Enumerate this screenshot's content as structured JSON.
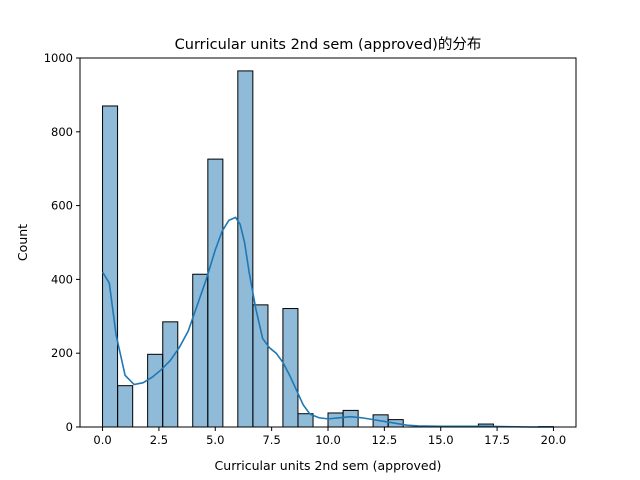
{
  "chart_data": {
    "type": "bar",
    "title": "Curricular units 2nd sem (approved)的分布",
    "xlabel": "Curricular units 2nd sem (approved)",
    "ylabel": "Count",
    "xlim": [
      -1.0,
      21.0
    ],
    "ylim": [
      0,
      1000
    ],
    "xticks": [
      "0.0",
      "2.5",
      "5.0",
      "7.5",
      "10.0",
      "12.5",
      "15.0",
      "17.5",
      "20.0"
    ],
    "yticks": [
      "0",
      "200",
      "400",
      "600",
      "800",
      "1000"
    ],
    "bin_width": 0.6667,
    "bins": [
      {
        "x0": 0.0,
        "count": 870
      },
      {
        "x0": 0.67,
        "count": 112
      },
      {
        "x0": 1.33,
        "count": 0
      },
      {
        "x0": 2.0,
        "count": 197
      },
      {
        "x0": 2.67,
        "count": 285
      },
      {
        "x0": 3.33,
        "count": 0
      },
      {
        "x0": 4.0,
        "count": 414
      },
      {
        "x0": 4.67,
        "count": 726
      },
      {
        "x0": 5.33,
        "count": 0
      },
      {
        "x0": 6.0,
        "count": 965
      },
      {
        "x0": 6.67,
        "count": 331
      },
      {
        "x0": 7.33,
        "count": 0
      },
      {
        "x0": 8.0,
        "count": 321
      },
      {
        "x0": 8.67,
        "count": 36
      },
      {
        "x0": 9.33,
        "count": 0
      },
      {
        "x0": 10.0,
        "count": 38
      },
      {
        "x0": 10.67,
        "count": 45
      },
      {
        "x0": 11.33,
        "count": 0
      },
      {
        "x0": 12.0,
        "count": 33
      },
      {
        "x0": 12.67,
        "count": 20
      },
      {
        "x0": 13.33,
        "count": 0
      },
      {
        "x0": 14.0,
        "count": 2
      },
      {
        "x0": 14.67,
        "count": 0
      },
      {
        "x0": 15.33,
        "count": 0
      },
      {
        "x0": 16.0,
        "count": 0
      },
      {
        "x0": 16.67,
        "count": 8
      },
      {
        "x0": 17.33,
        "count": 0
      },
      {
        "x0": 18.0,
        "count": 0
      },
      {
        "x0": 18.67,
        "count": 0
      },
      {
        "x0": 19.33,
        "count": 1
      }
    ],
    "kde": {
      "x": [
        0.0,
        0.3,
        0.6,
        1.0,
        1.4,
        1.8,
        2.2,
        2.6,
        3.0,
        3.4,
        3.8,
        4.2,
        4.6,
        5.0,
        5.3,
        5.6,
        5.9,
        6.1,
        6.3,
        6.5,
        6.8,
        7.1,
        7.4,
        7.7,
        8.0,
        8.3,
        8.6,
        8.9,
        9.2,
        9.6,
        10.0,
        10.5,
        11.0,
        11.5,
        12.0,
        12.5,
        13.0,
        13.5,
        14.0,
        15.0,
        16.0,
        17.0,
        18.0,
        19.0,
        20.0
      ],
      "y": [
        420,
        390,
        250,
        140,
        115,
        120,
        135,
        155,
        180,
        215,
        260,
        330,
        400,
        480,
        530,
        560,
        568,
        550,
        500,
        420,
        320,
        240,
        215,
        200,
        175,
        140,
        100,
        60,
        35,
        25,
        22,
        25,
        28,
        25,
        20,
        15,
        10,
        5,
        3,
        2,
        2,
        2,
        1,
        0,
        0
      ]
    },
    "bar_color": "#1f77b4",
    "bar_opacity": 0.5,
    "line_color": "#1f77b4",
    "grid": false
  }
}
